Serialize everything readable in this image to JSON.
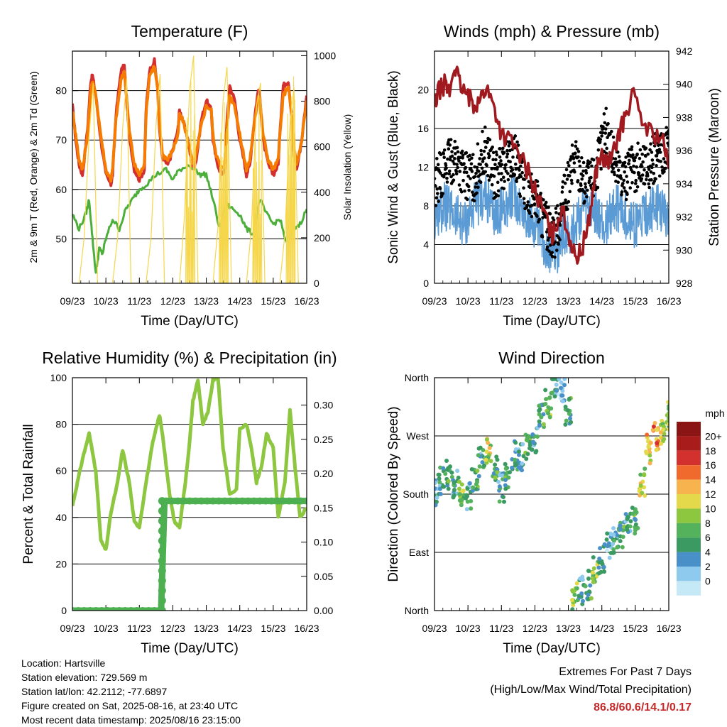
{
  "chart_data": [
    {
      "type": "line",
      "title": "Temperature (F)",
      "xlabel": "Time (Day/UTC)",
      "ylabel": "2m & 9m T (Red, Orange) & 2m Td (Green)",
      "y2label": "Solar Insolation (Yellow)",
      "x_ticks": [
        "09/23",
        "10/23",
        "11/23",
        "12/23",
        "13/23",
        "14/23",
        "15/23",
        "16/23"
      ],
      "xlim": [
        0,
        7
      ],
      "ylim": [
        41,
        88
      ],
      "y_ticks": [
        50,
        60,
        70,
        80
      ],
      "y2lim": [
        0,
        1020
      ],
      "y2_ticks": [
        0,
        200,
        400,
        600,
        800,
        1000
      ],
      "grid": true,
      "series": [
        {
          "name": "2m T",
          "color": "#d32f2f",
          "x": [
            0,
            0.1,
            0.2,
            0.3,
            0.45,
            0.55,
            0.6,
            0.7,
            0.85,
            1.0,
            1.15,
            1.2,
            1.3,
            1.45,
            1.55,
            1.6,
            1.7,
            1.85,
            2.0,
            2.15,
            2.2,
            2.3,
            2.45,
            2.55,
            2.6,
            2.7,
            2.85,
            3.0,
            3.15,
            3.2,
            3.3,
            3.45,
            3.55,
            3.6,
            3.7,
            3.85,
            4.0,
            4.15,
            4.2,
            4.3,
            4.45,
            4.55,
            4.6,
            4.7,
            4.85,
            5.0,
            5.15,
            5.2,
            5.3,
            5.45,
            5.55,
            5.6,
            5.7,
            5.85,
            6.0,
            6.15,
            6.2,
            6.3,
            6.45,
            6.55,
            6.6,
            6.7,
            6.85,
            7.0
          ],
          "values": [
            77,
            70,
            65,
            63,
            72,
            82,
            83,
            79,
            70,
            63,
            61,
            63,
            75,
            84,
            85,
            80,
            71,
            64,
            62,
            64,
            76,
            84,
            86,
            80,
            72,
            66,
            65,
            68,
            72,
            76,
            74,
            70,
            66,
            64,
            66,
            74,
            78,
            76,
            70,
            66,
            63,
            64,
            72,
            81,
            78,
            70,
            65,
            63,
            65,
            75,
            80,
            79,
            70,
            65,
            63,
            65,
            72,
            81,
            82,
            75,
            68,
            64,
            70,
            79
          ]
        },
        {
          "name": "9m T",
          "color": "#f57c00",
          "x": [
            0,
            0.1,
            0.2,
            0.3,
            0.45,
            0.55,
            0.6,
            0.7,
            0.85,
            1.0,
            1.15,
            1.2,
            1.3,
            1.45,
            1.55,
            1.6,
            1.7,
            1.85,
            2.0,
            2.15,
            2.2,
            2.3,
            2.45,
            2.55,
            2.6,
            2.7,
            2.85,
            3.0,
            3.15,
            3.2,
            3.3,
            3.45,
            3.55,
            3.6,
            3.7,
            3.85,
            4.0,
            4.15,
            4.2,
            4.3,
            4.45,
            4.55,
            4.6,
            4.7,
            4.85,
            5.0,
            5.15,
            5.2,
            5.3,
            5.45,
            5.55,
            5.6,
            5.7,
            5.85,
            6.0,
            6.15,
            6.2,
            6.3,
            6.45,
            6.55,
            6.6,
            6.7,
            6.85,
            7.0
          ],
          "values": [
            76,
            71,
            66,
            64,
            71,
            80,
            82,
            79,
            71,
            64,
            62,
            64,
            74,
            82,
            84,
            80,
            72,
            65,
            63,
            65,
            75,
            83,
            85,
            80,
            73,
            67,
            66,
            68,
            71,
            75,
            74,
            70,
            67,
            65,
            67,
            73,
            77,
            76,
            71,
            67,
            64,
            65,
            71,
            79,
            77,
            71,
            66,
            64,
            66,
            74,
            79,
            78,
            71,
            66,
            64,
            66,
            71,
            79,
            81,
            75,
            69,
            65,
            70,
            78
          ]
        },
        {
          "name": "2m Td",
          "color": "#4caf3a",
          "x": [
            0,
            0.2,
            0.4,
            0.5,
            0.6,
            0.7,
            0.8,
            0.9,
            1.0,
            1.2,
            1.4,
            1.6,
            1.8,
            2.0,
            2.2,
            2.5,
            2.8,
            3.0,
            3.2,
            3.5,
            3.8,
            4.0,
            4.2,
            4.4,
            4.6,
            4.8,
            5.0,
            5.2,
            5.4,
            5.6,
            5.8,
            6.0,
            6.2,
            6.4,
            6.6,
            6.8,
            7.0
          ],
          "values": [
            55,
            52,
            55,
            58,
            50,
            43,
            48,
            47,
            50,
            54,
            52,
            56,
            58,
            60,
            61,
            63,
            64,
            62,
            64,
            65,
            63,
            63,
            58,
            52,
            57,
            56,
            55,
            52,
            51,
            58,
            55,
            53,
            54,
            49,
            52,
            53,
            56
          ]
        },
        {
          "name": "Solar Insolation",
          "axis": "y2",
          "color": "#f5d64a",
          "x": [
            0,
            0.2,
            0.35,
            0.5,
            0.62,
            0.75,
            1.2,
            1.35,
            1.5,
            1.62,
            1.75,
            2.2,
            2.35,
            2.5,
            2.62,
            2.75,
            3.2,
            3.35,
            3.5,
            3.62,
            3.75,
            4.2,
            4.35,
            4.5,
            4.62,
            4.75,
            5.2,
            5.35,
            5.5,
            5.62,
            5.75,
            6.2,
            6.35,
            6.5,
            6.62,
            6.75,
            7.0
          ],
          "values": [
            0,
            0,
            200,
            650,
            880,
            0,
            0,
            200,
            680,
            900,
            0,
            0,
            200,
            700,
            920,
            0,
            0,
            300,
            850,
            1000,
            0,
            0,
            250,
            800,
            950,
            0,
            0,
            250,
            780,
            880,
            0,
            0,
            220,
            700,
            860,
            0,
            0
          ]
        }
      ]
    },
    {
      "type": "line",
      "title": "Winds (mph) & Pressure (mb)",
      "xlabel": "Time (Day/UTC)",
      "ylabel": "Sonic Wind & Gust (Blue, Black)",
      "y2label": "Station Pressure (Maroon)",
      "x_ticks": [
        "09/23",
        "10/23",
        "11/23",
        "12/23",
        "13/23",
        "14/23",
        "15/23",
        "16/23"
      ],
      "xlim": [
        0,
        7
      ],
      "ylim": [
        0,
        24
      ],
      "y_ticks": [
        0,
        4,
        8,
        12,
        16,
        20
      ],
      "y2lim": [
        928,
        942
      ],
      "y2_ticks": [
        928,
        930,
        932,
        934,
        936,
        938,
        940,
        942
      ],
      "grid": true,
      "series": [
        {
          "name": "Sonic Wind",
          "color": "#5b9bd5",
          "x": [
            0,
            0.3,
            0.6,
            0.9,
            1.2,
            1.5,
            1.8,
            2.1,
            2.4,
            2.7,
            3.0,
            3.3,
            3.6,
            3.9,
            4.2,
            4.5,
            4.8,
            5.1,
            5.4,
            5.7,
            6.0,
            6.3,
            6.6,
            7.0
          ],
          "values": [
            7,
            8,
            7,
            6,
            8,
            9,
            7,
            8,
            9,
            7,
            6,
            4,
            3,
            5,
            6,
            8,
            7,
            6,
            8,
            7,
            6,
            7,
            8,
            7
          ]
        },
        {
          "name": "Gust",
          "color": "#000000",
          "x": [
            0,
            0.3,
            0.6,
            0.9,
            1.2,
            1.5,
            1.8,
            2.1,
            2.4,
            2.7,
            3.0,
            3.3,
            3.6,
            3.9,
            4.2,
            4.5,
            4.8,
            5.1,
            5.4,
            5.7,
            6.0,
            6.3,
            6.6,
            7.0
          ],
          "values": [
            10,
            12,
            13,
            11,
            11,
            14,
            11,
            12,
            13,
            10,
            9,
            6,
            5,
            9,
            13,
            10,
            11,
            16,
            12,
            11,
            12,
            12,
            13,
            14
          ]
        },
        {
          "name": "Station Pressure",
          "axis": "y2",
          "color": "#a0191e",
          "x": [
            0,
            0.1,
            0.3,
            0.45,
            0.6,
            0.75,
            1.0,
            1.2,
            1.4,
            1.55,
            1.8,
            2.0,
            2.3,
            2.6,
            2.9,
            3.1,
            3.3,
            3.5,
            3.6,
            3.8,
            4.0,
            4.2,
            4.4,
            4.6,
            4.8,
            4.95,
            5.1,
            5.3,
            5.5,
            5.7,
            5.9,
            6.2,
            6.5,
            6.8,
            7.0
          ],
          "values": [
            938.5,
            939.5,
            940,
            939.5,
            941.2,
            940,
            939.2,
            938.8,
            939.2,
            939.8,
            938.5,
            937,
            936.5,
            935.5,
            934.3,
            933,
            932.2,
            930.8,
            931.3,
            932.6,
            931,
            929.5,
            930,
            931.6,
            934.5,
            935.7,
            935.3,
            935.4,
            937,
            938,
            939.5,
            937.8,
            937,
            936.8,
            934.9
          ]
        }
      ]
    },
    {
      "type": "line",
      "title": "Relative Humidity (%) & Precipitation (in)",
      "xlabel": "Time (Day/UTC)",
      "ylabel": "Percent & Total Rainfall",
      "x_ticks": [
        "09/23",
        "10/23",
        "11/23",
        "12/23",
        "13/23",
        "14/23",
        "15/23",
        "16/23"
      ],
      "xlim": [
        0,
        7
      ],
      "ylim": [
        0,
        100
      ],
      "y_ticks": [
        0,
        20,
        40,
        60,
        80,
        100
      ],
      "y2lim": [
        0,
        0.34
      ],
      "y2_ticks": [
        "0.00",
        "0.05",
        "0.10",
        "0.15",
        "0.20",
        "0.25",
        "0.30"
      ],
      "grid": true,
      "series": [
        {
          "name": "Relative Humidity",
          "color": "#8dc63f",
          "x": [
            0,
            0.15,
            0.3,
            0.5,
            0.7,
            0.85,
            1.0,
            1.15,
            1.35,
            1.5,
            1.7,
            1.85,
            2.0,
            2.2,
            2.4,
            2.6,
            2.7,
            2.9,
            3.05,
            3.2,
            3.35,
            3.5,
            3.6,
            3.75,
            3.9,
            4.05,
            4.2,
            4.35,
            4.5,
            4.7,
            4.9,
            5.0,
            5.2,
            5.35,
            5.5,
            5.65,
            5.8,
            6.0,
            6.15,
            6.35,
            6.5,
            6.65,
            6.8,
            7.0
          ],
          "values": [
            45,
            55,
            65,
            76,
            60,
            30,
            26,
            42,
            55,
            69,
            55,
            38,
            36,
            55,
            72,
            84,
            75,
            50,
            38,
            36,
            52,
            72,
            90,
            99,
            80,
            85,
            99,
            100,
            70,
            50,
            52,
            78,
            80,
            70,
            55,
            62,
            76,
            70,
            40,
            55,
            86,
            62,
            40,
            44
          ]
        },
        {
          "name": "Total Precipitation",
          "axis": "y2",
          "color": "#4caf50",
          "x": [
            0,
            2.5,
            2.65,
            2.7,
            2.75,
            7.0
          ],
          "values": [
            0,
            0,
            0,
            0.08,
            0.16,
            0.16
          ]
        }
      ]
    },
    {
      "type": "scatter",
      "title": "Wind Direction",
      "xlabel": "Time (Day/UTC)",
      "ylabel": "Direction (Colored By Speed)",
      "x_ticks": [
        "09/23",
        "10/23",
        "11/23",
        "12/23",
        "13/23",
        "14/23",
        "15/23",
        "16/23"
      ],
      "xlim": [
        0,
        7
      ],
      "ylim": [
        0,
        360
      ],
      "y_ticks": [
        0,
        90,
        180,
        270,
        360
      ],
      "y_tick_labels": [
        "North",
        "East",
        "South",
        "West",
        "North"
      ],
      "grid": true,
      "legend": "right",
      "legend_title": "mph",
      "color_levels": [
        "0",
        "2",
        "4",
        "6",
        "8",
        "10",
        "12",
        "14",
        "16",
        "18",
        "20+"
      ],
      "color_scale": [
        "#c6e9f8",
        "#8ec9ee",
        "#4a90c8",
        "#3b9a62",
        "#55b25c",
        "#8dc63f",
        "#e3d94a",
        "#f6b34e",
        "#f06a2e",
        "#d2312d",
        "#a81c1c",
        "#8b1414"
      ],
      "x": [
        0,
        0.2,
        0.4,
        0.6,
        0.8,
        1.0,
        1.2,
        1.4,
        1.6,
        1.8,
        2.0,
        2.2,
        2.4,
        2.6,
        2.8,
        3.0,
        3.2,
        3.4,
        3.6,
        3.8,
        4.0,
        4.2,
        4.4,
        4.6,
        4.8,
        5.0,
        5.2,
        5.4,
        5.6,
        5.8,
        6.0,
        6.2,
        6.4,
        6.6,
        6.8,
        7.0
      ],
      "values": [
        180,
        200,
        210,
        195,
        185,
        175,
        200,
        230,
        245,
        220,
        190,
        210,
        240,
        235,
        250,
        260,
        300,
        320,
        350,
        340,
        310,
        20,
        30,
        40,
        60,
        80,
        100,
        110,
        120,
        130,
        140,
        200,
        250,
        270,
        280,
        300
      ],
      "speeds": [
        4,
        6,
        8,
        6,
        10,
        6,
        8,
        6,
        12,
        8,
        6,
        8,
        6,
        4,
        8,
        6,
        8,
        10,
        6,
        4,
        8,
        10,
        6,
        8,
        10,
        6,
        4,
        6,
        8,
        6,
        8,
        12,
        14,
        16,
        12,
        10
      ]
    }
  ],
  "info": {
    "location": "Location: Hartsville",
    "elevation": "Station elevation: 729.569 m",
    "latlon": "Station lat/lon: 42.2112; -77.6897",
    "created": "Figure created on Sat, 2025-08-16, at 23:40 UTC",
    "recent": "Most recent data timestamp: 2025/08/16 23:15:00"
  },
  "extremes": {
    "line1": "Extremes For Past 7 Days",
    "line2": "(High/Low/Max Wind/Total Precipitation)",
    "values": "86.8/60.6/14.1/0.17"
  }
}
